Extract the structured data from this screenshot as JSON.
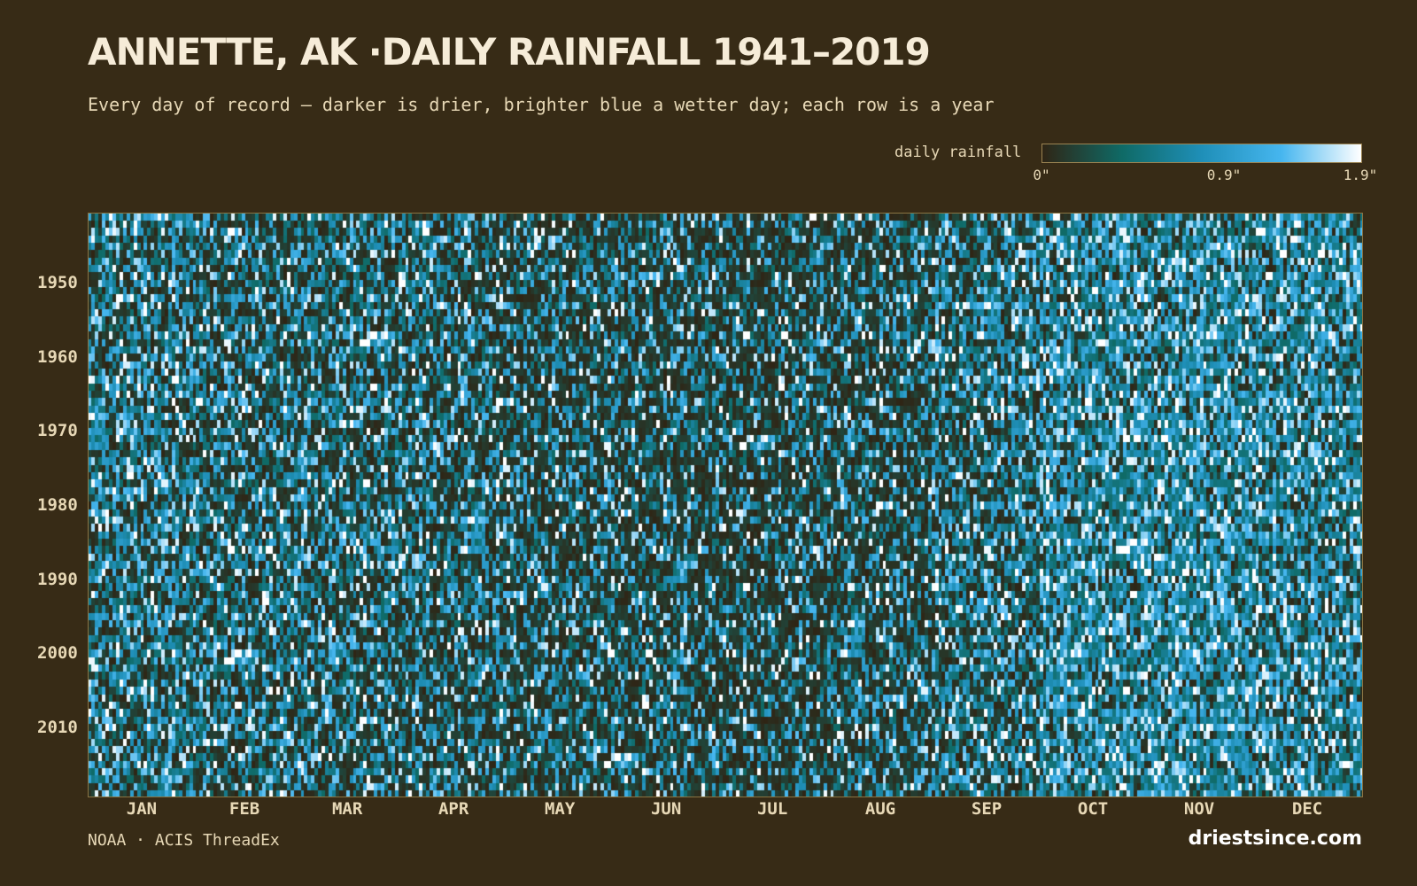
{
  "chart_data": {
    "type": "heatmap",
    "title": "ANNETTE, AK ·DAILY RAINFALL 1941–2019",
    "subtitle": "Every day of record — darker is drier, brighter blue a wetter day; each row is a year",
    "x_axis": {
      "unit": "day of year",
      "tick_labels": [
        "JAN",
        "FEB",
        "MAR",
        "APR",
        "MAY",
        "JUN",
        "JUL",
        "AUG",
        "SEP",
        "OCT",
        "NOV",
        "DEC"
      ]
    },
    "y_axis": {
      "unit": "year",
      "range": [
        1941,
        2019
      ],
      "ticks": [
        1950,
        1960,
        1970,
        1980,
        1990,
        2000,
        2010
      ]
    },
    "color_scale": {
      "label": "daily rainfall",
      "min": 0,
      "mid": 0.9,
      "max": 1.9,
      "tick_labels": [
        "0\"",
        "0.9\"",
        "1.9\""
      ],
      "colors": [
        "#2f2515",
        "#0f6a66",
        "#1f8fb8",
        "#46b6ef",
        "#ffffff"
      ]
    },
    "month_start_days": [
      1,
      32,
      60,
      91,
      121,
      152,
      182,
      213,
      244,
      274,
      305,
      335
    ],
    "relative_wetness_by_month": [
      0.62,
      0.55,
      0.55,
      0.5,
      0.45,
      0.42,
      0.38,
      0.45,
      0.6,
      0.78,
      0.8,
      0.75
    ],
    "colors": {
      "background": "#372b16",
      "dry": "#2f2515",
      "wet": "#ffffff"
    }
  },
  "source": "NOAA · ACIS ThreadEx",
  "brand": "driestsince.com"
}
